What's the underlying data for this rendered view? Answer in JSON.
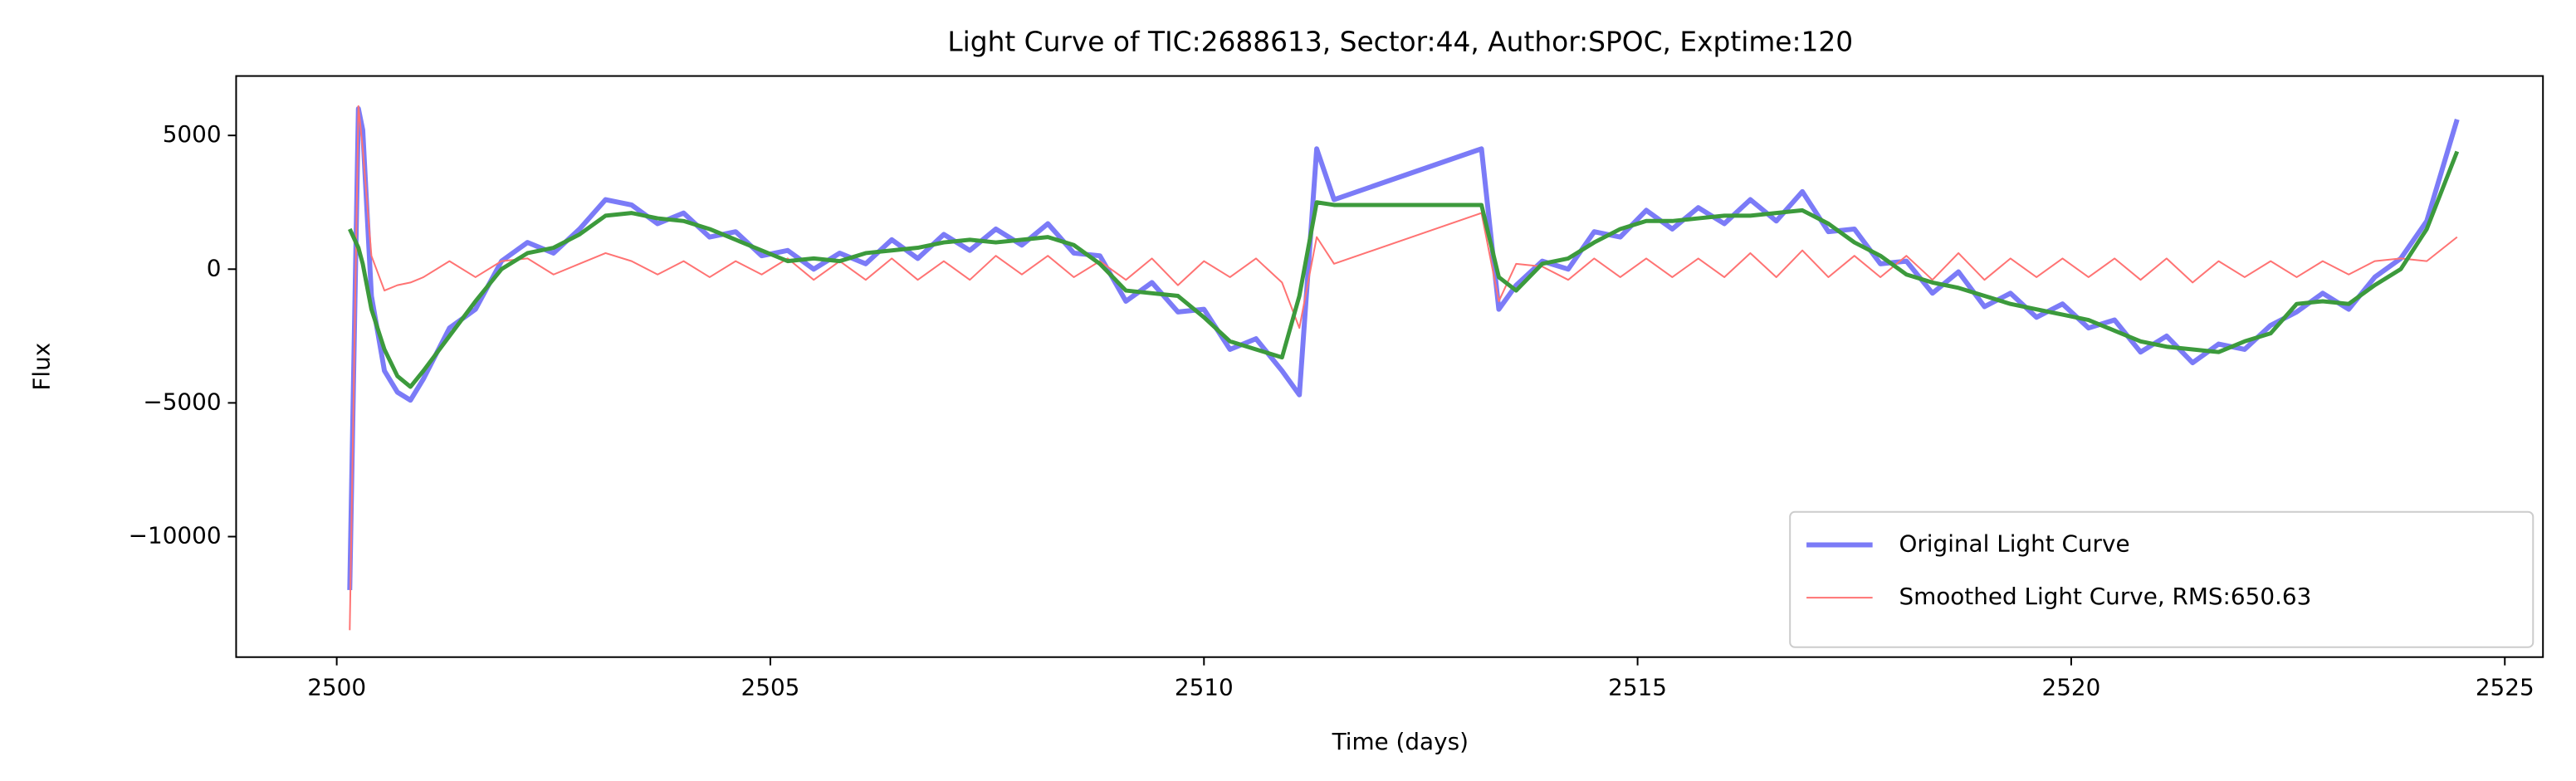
{
  "chart_data": {
    "type": "line",
    "title": "Light Curve of TIC:2688613, Sector:44, Author:SPOC, Exptime:120",
    "xlabel": "Time (days)",
    "ylabel": "Flux",
    "x": [
      2500.15,
      2500.25,
      2500.3,
      2500.4,
      2500.55,
      2500.7,
      2500.85,
      2501.0,
      2501.3,
      2501.6,
      2501.9,
      2502.2,
      2502.5,
      2502.8,
      2503.1,
      2503.4,
      2503.7,
      2504.0,
      2504.3,
      2504.6,
      2504.9,
      2505.2,
      2505.5,
      2505.8,
      2506.1,
      2506.4,
      2506.7,
      2507.0,
      2507.3,
      2507.6,
      2507.9,
      2508.2,
      2508.5,
      2508.8,
      2509.1,
      2509.4,
      2509.7,
      2510.0,
      2510.3,
      2510.6,
      2510.9,
      2511.1,
      2511.3,
      2511.5,
      2513.2,
      2513.4,
      2513.6,
      2513.9,
      2514.2,
      2514.5,
      2514.8,
      2515.1,
      2515.4,
      2515.7,
      2516.0,
      2516.3,
      2516.6,
      2516.9,
      2517.2,
      2517.5,
      2517.8,
      2518.1,
      2518.4,
      2518.7,
      2519.0,
      2519.3,
      2519.6,
      2519.9,
      2520.2,
      2520.5,
      2520.8,
      2521.1,
      2521.4,
      2521.7,
      2522.0,
      2522.3,
      2522.6,
      2522.9,
      2523.2,
      2523.5,
      2523.8,
      2524.1,
      2524.45
    ],
    "series": [
      {
        "name": "Original Light Curve",
        "color": "#7b7bf7",
        "width": 3,
        "values": [
          -12000,
          6000,
          5200,
          -1000,
          -3800,
          -4600,
          -4900,
          -4100,
          -2200,
          -1500,
          300,
          1000,
          600,
          1500,
          2600,
          2400,
          1700,
          2100,
          1200,
          1400,
          500,
          700,
          0,
          600,
          200,
          1100,
          400,
          1300,
          700,
          1500,
          900,
          1700,
          600,
          500,
          -1200,
          -500,
          -1600,
          -1500,
          -3000,
          -2600,
          -3800,
          -4700,
          4500,
          2600,
          4500,
          -1500,
          -600,
          300,
          0,
          1400,
          1200,
          2200,
          1500,
          2300,
          1700,
          2600,
          1800,
          2900,
          1400,
          1500,
          200,
          300,
          -900,
          -100,
          -1400,
          -900,
          -1800,
          -1300,
          -2200,
          -1900,
          -3100,
          -2500,
          -3500,
          -2800,
          -3000,
          -2100,
          -1600,
          -900,
          -1500,
          -300,
          400,
          1800,
          5600
        ]
      },
      {
        "name": "Smoothed Light Curve, RMS:650.63",
        "color": "#ff7373",
        "width": 1,
        "values": [
          -13500,
          6100,
          4500,
          500,
          -800,
          -600,
          -500,
          -300,
          300,
          -300,
          300,
          400,
          -200,
          200,
          600,
          300,
          -200,
          300,
          -300,
          300,
          -200,
          400,
          -400,
          300,
          -400,
          400,
          -400,
          300,
          -400,
          500,
          -200,
          500,
          -300,
          300,
          -400,
          400,
          -600,
          300,
          -300,
          400,
          -500,
          -2200,
          1200,
          200,
          2100,
          -1200,
          200,
          100,
          -400,
          400,
          -300,
          400,
          -300,
          400,
          -300,
          600,
          -300,
          700,
          -300,
          500,
          -300,
          500,
          -400,
          600,
          -400,
          400,
          -300,
          400,
          -300,
          400,
          -400,
          400,
          -500,
          300,
          -300,
          300,
          -300,
          300,
          -200,
          300,
          400,
          300,
          1200
        ]
      },
      {
        "color": "#3c9a3c",
        "width": 2.5,
        "values": [
          1500,
          800,
          200,
          -1500,
          -3000,
          -4000,
          -4400,
          -3800,
          -2500,
          -1200,
          0,
          600,
          800,
          1300,
          2000,
          2100,
          1900,
          1800,
          1500,
          1100,
          700,
          300,
          400,
          300,
          600,
          700,
          800,
          1000,
          1100,
          1000,
          1100,
          1200,
          900,
          200,
          -800,
          -900,
          -1000,
          -1800,
          -2700,
          -3000,
          -3300,
          -1000,
          2500,
          2400,
          2400,
          -300,
          -800,
          200,
          400,
          1000,
          1500,
          1800,
          1800,
          1900,
          2000,
          2000,
          2100,
          2200,
          1700,
          1000,
          500,
          -200,
          -500,
          -700,
          -1000,
          -1300,
          -1500,
          -1700,
          -1900,
          -2300,
          -2700,
          -2900,
          -3000,
          -3100,
          -2700,
          -2400,
          -1300,
          -1200,
          -1300,
          -600,
          0,
          1500,
          4400
        ]
      }
    ],
    "xlim": [
      2498.84,
      2525.44
    ],
    "xticks": [
      2500,
      2505,
      2510,
      2515,
      2520,
      2525
    ],
    "ylim": [
      -14506,
      7222
    ],
    "yticks": [
      {
        "value": -10000,
        "label": "−10000"
      },
      {
        "value": -5000,
        "label": "−5000"
      },
      0,
      5000
    ],
    "legend": "lower right"
  }
}
